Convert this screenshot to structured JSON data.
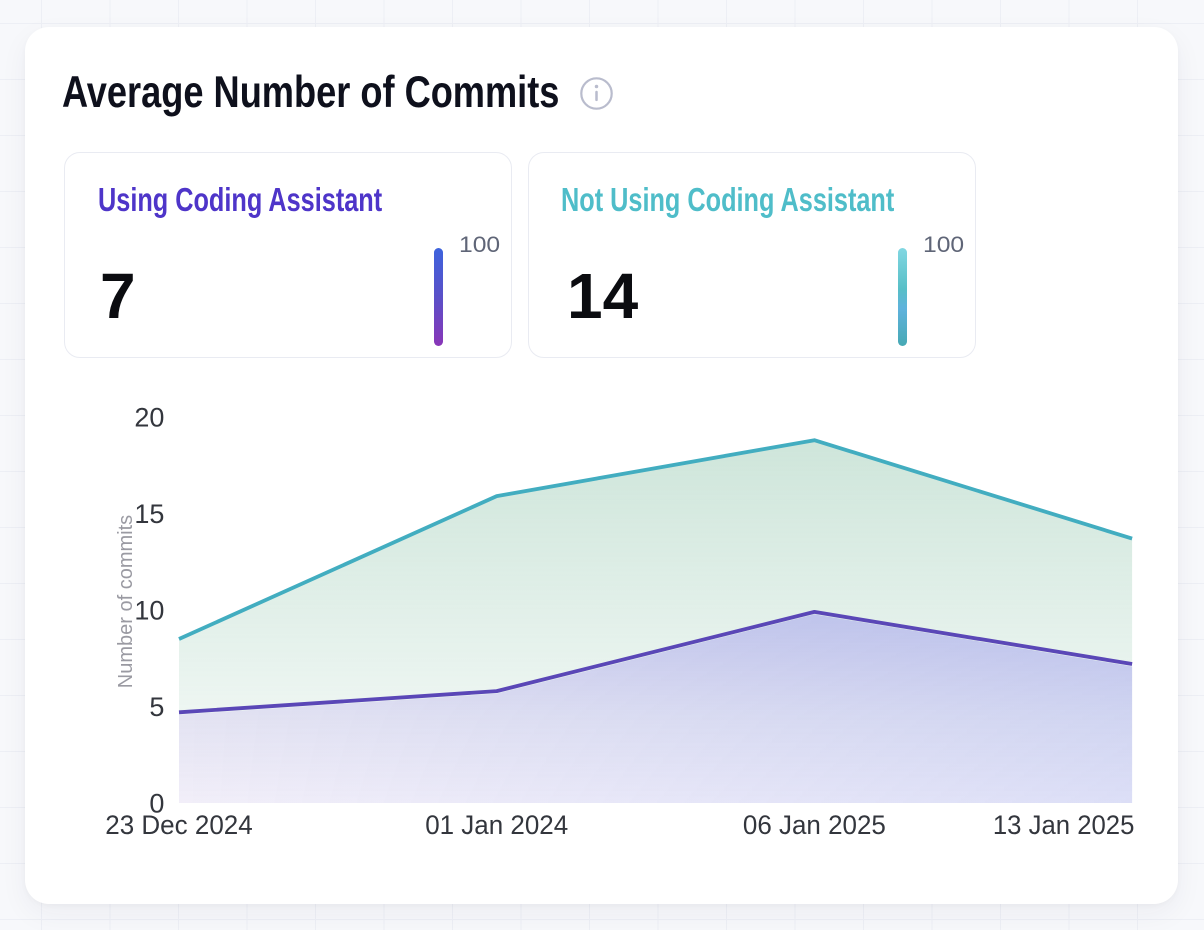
{
  "panel": {
    "title": "Average Number of Commits",
    "info_icon": "info-circle-icon",
    "info_color": "#b9bccd"
  },
  "stats": [
    {
      "label": "Using Coding Assistant",
      "value": "7",
      "scale_max": "100",
      "label_color": "#4e35c9",
      "bar_gradient": [
        "#3d63dd 0%",
        "#5a50c8 50%",
        "#8936b8 100%"
      ]
    },
    {
      "label": "Not Using Coding Assistant",
      "value": "14",
      "scale_max": "100",
      "label_color": "#4fbdc9",
      "bar_gradient": [
        "#82d7e2 0%",
        "#58bfc7 42%",
        "#5fb2dc 62%",
        "#47a9b4 100%"
      ]
    }
  ],
  "chart_data": {
    "type": "area",
    "title": "Average Number of Commits",
    "x": [
      "23 Dec 2024",
      "01 Jan 2024",
      "06 Jan 2025",
      "13 Jan 2025"
    ],
    "xlabel": "",
    "ylabel": "Number of commits",
    "ylim": [
      0,
      20
    ],
    "yticks": [
      0,
      5,
      10,
      15,
      20
    ],
    "grid": false,
    "legend": "none",
    "series": [
      {
        "name": "Not Using Coding Assistant",
        "color": "#42adc0",
        "area_layers": [
          {
            "direction": "vertical",
            "stops": [
              {
                "offset": 0.0,
                "color": "rgba(115,182,150,0.35)"
              },
              {
                "offset": 1.0,
                "color": "rgba(115,182,150,0.05)"
              }
            ]
          }
        ],
        "values": [
          8.5,
          15.9,
          18.8,
          13.7
        ]
      },
      {
        "name": "Using Coding Assistant",
        "color": "#5a47b7",
        "area_layers": [
          {
            "direction": "vertical",
            "stops": [
              {
                "offset": 0.0,
                "color": "rgba(152,132,240,0.35)"
              },
              {
                "offset": 0.55,
                "color": "rgba(172,129,242,0.165)"
              },
              {
                "offset": 1.0,
                "color": "rgba(186,127,244,0.10)"
              }
            ]
          },
          {
            "direction": "horizontal",
            "stops": [
              {
                "offset": 0.0,
                "color": "rgba(110,140,235,0)"
              },
              {
                "offset": 1.0,
                "color": "rgba(110,140,235,0.16)"
              }
            ]
          }
        ],
        "values": [
          4.7,
          5.8,
          9.9,
          7.2
        ]
      }
    ],
    "tick_color": "#33363d",
    "axis_title_color": "#9a9aa2"
  }
}
